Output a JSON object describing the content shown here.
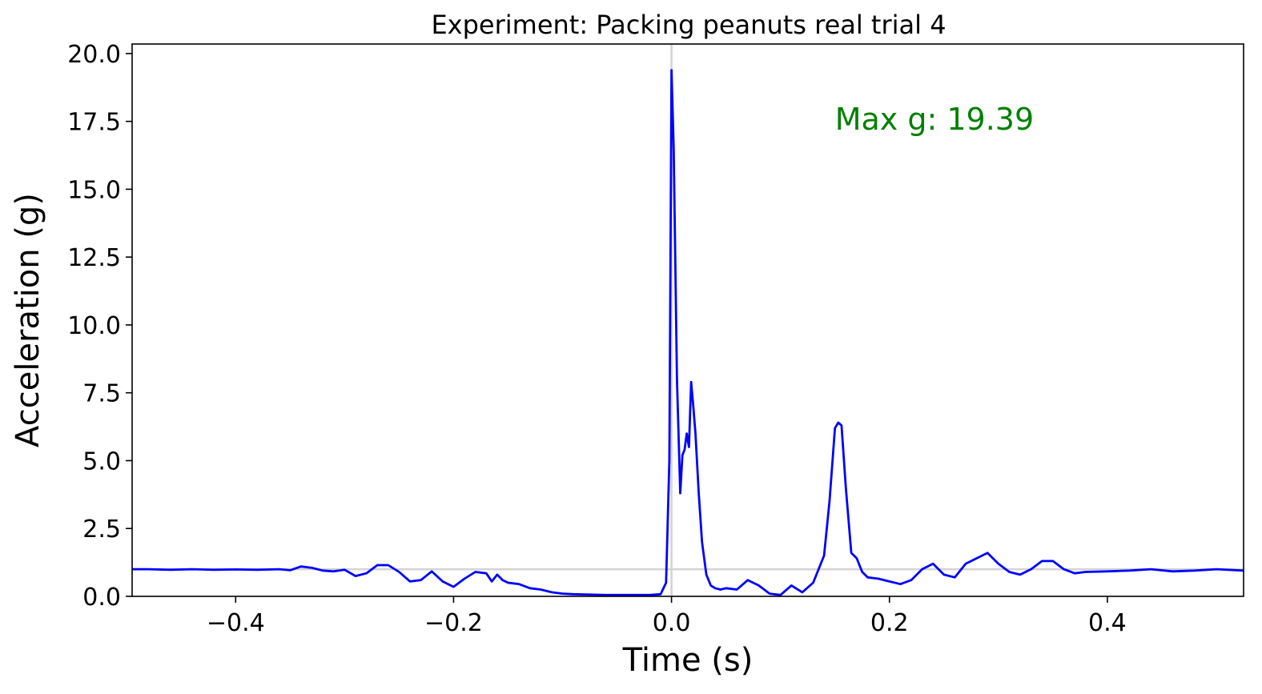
{
  "chart_data": {
    "type": "line",
    "title": "Experiment: Packing peanuts real trial 4",
    "xlabel": "Time (s)",
    "ylabel": "Acceleration (g)",
    "xlim": [
      -0.495,
      0.525
    ],
    "ylim": [
      0,
      20.35
    ],
    "x_ticks": [
      -0.4,
      -0.2,
      0.0,
      0.2,
      0.4
    ],
    "x_tick_labels": [
      "−0.4",
      "−0.2",
      "0.0",
      "0.2",
      "0.4"
    ],
    "y_ticks": [
      0.0,
      2.5,
      5.0,
      7.5,
      10.0,
      12.5,
      15.0,
      17.5,
      20.0
    ],
    "y_tick_labels": [
      "0.0",
      "2.5",
      "5.0",
      "7.5",
      "10.0",
      "12.5",
      "15.0",
      "17.5",
      "20.0"
    ],
    "grid": false,
    "reference_lines": {
      "vertical_x": 0.0,
      "horizontal_y": 1.0,
      "color": "#d3d3d3"
    },
    "annotation": {
      "text": "Max g: 19.39",
      "x": 0.15,
      "y": 17.6,
      "color": "#008000"
    },
    "series": [
      {
        "color": "#0000ff",
        "x": [
          -0.495,
          -0.48,
          -0.46,
          -0.44,
          -0.42,
          -0.4,
          -0.38,
          -0.36,
          -0.35,
          -0.34,
          -0.33,
          -0.32,
          -0.31,
          -0.3,
          -0.29,
          -0.28,
          -0.27,
          -0.26,
          -0.25,
          -0.24,
          -0.23,
          -0.22,
          -0.21,
          -0.2,
          -0.19,
          -0.18,
          -0.17,
          -0.165,
          -0.16,
          -0.155,
          -0.15,
          -0.14,
          -0.13,
          -0.12,
          -0.11,
          -0.1,
          -0.09,
          -0.08,
          -0.06,
          -0.04,
          -0.02,
          -0.01,
          -0.005,
          -0.002,
          0.0,
          0.002,
          0.005,
          0.008,
          0.01,
          0.012,
          0.014,
          0.016,
          0.018,
          0.02,
          0.022,
          0.025,
          0.028,
          0.032,
          0.036,
          0.04,
          0.045,
          0.05,
          0.06,
          0.07,
          0.08,
          0.09,
          0.1,
          0.11,
          0.12,
          0.13,
          0.14,
          0.145,
          0.15,
          0.153,
          0.156,
          0.16,
          0.165,
          0.17,
          0.175,
          0.18,
          0.19,
          0.2,
          0.21,
          0.22,
          0.23,
          0.24,
          0.25,
          0.26,
          0.27,
          0.28,
          0.29,
          0.3,
          0.31,
          0.32,
          0.33,
          0.34,
          0.35,
          0.36,
          0.37,
          0.38,
          0.4,
          0.42,
          0.44,
          0.46,
          0.48,
          0.5,
          0.525
        ],
        "y": [
          1.0,
          1.0,
          0.98,
          1.0,
          0.98,
          0.99,
          0.98,
          1.0,
          0.96,
          1.1,
          1.05,
          0.95,
          0.92,
          0.98,
          0.75,
          0.85,
          1.15,
          1.15,
          0.9,
          0.55,
          0.6,
          0.92,
          0.55,
          0.35,
          0.65,
          0.9,
          0.85,
          0.55,
          0.8,
          0.6,
          0.5,
          0.45,
          0.3,
          0.25,
          0.15,
          0.1,
          0.08,
          0.07,
          0.05,
          0.05,
          0.05,
          0.08,
          0.5,
          5.0,
          19.39,
          16.5,
          8.0,
          3.8,
          5.2,
          5.4,
          6.0,
          5.5,
          7.9,
          7.0,
          6.0,
          3.8,
          2.0,
          0.8,
          0.4,
          0.3,
          0.25,
          0.3,
          0.25,
          0.6,
          0.4,
          0.1,
          0.05,
          0.4,
          0.15,
          0.5,
          1.5,
          3.5,
          6.2,
          6.4,
          6.3,
          4.0,
          1.6,
          1.4,
          0.9,
          0.7,
          0.65,
          0.55,
          0.45,
          0.6,
          1.0,
          1.2,
          0.8,
          0.7,
          1.2,
          1.4,
          1.6,
          1.2,
          0.9,
          0.8,
          1.0,
          1.3,
          1.3,
          1.0,
          0.85,
          0.9,
          0.92,
          0.95,
          1.0,
          0.92,
          0.95,
          1.0,
          0.95
        ]
      }
    ]
  }
}
